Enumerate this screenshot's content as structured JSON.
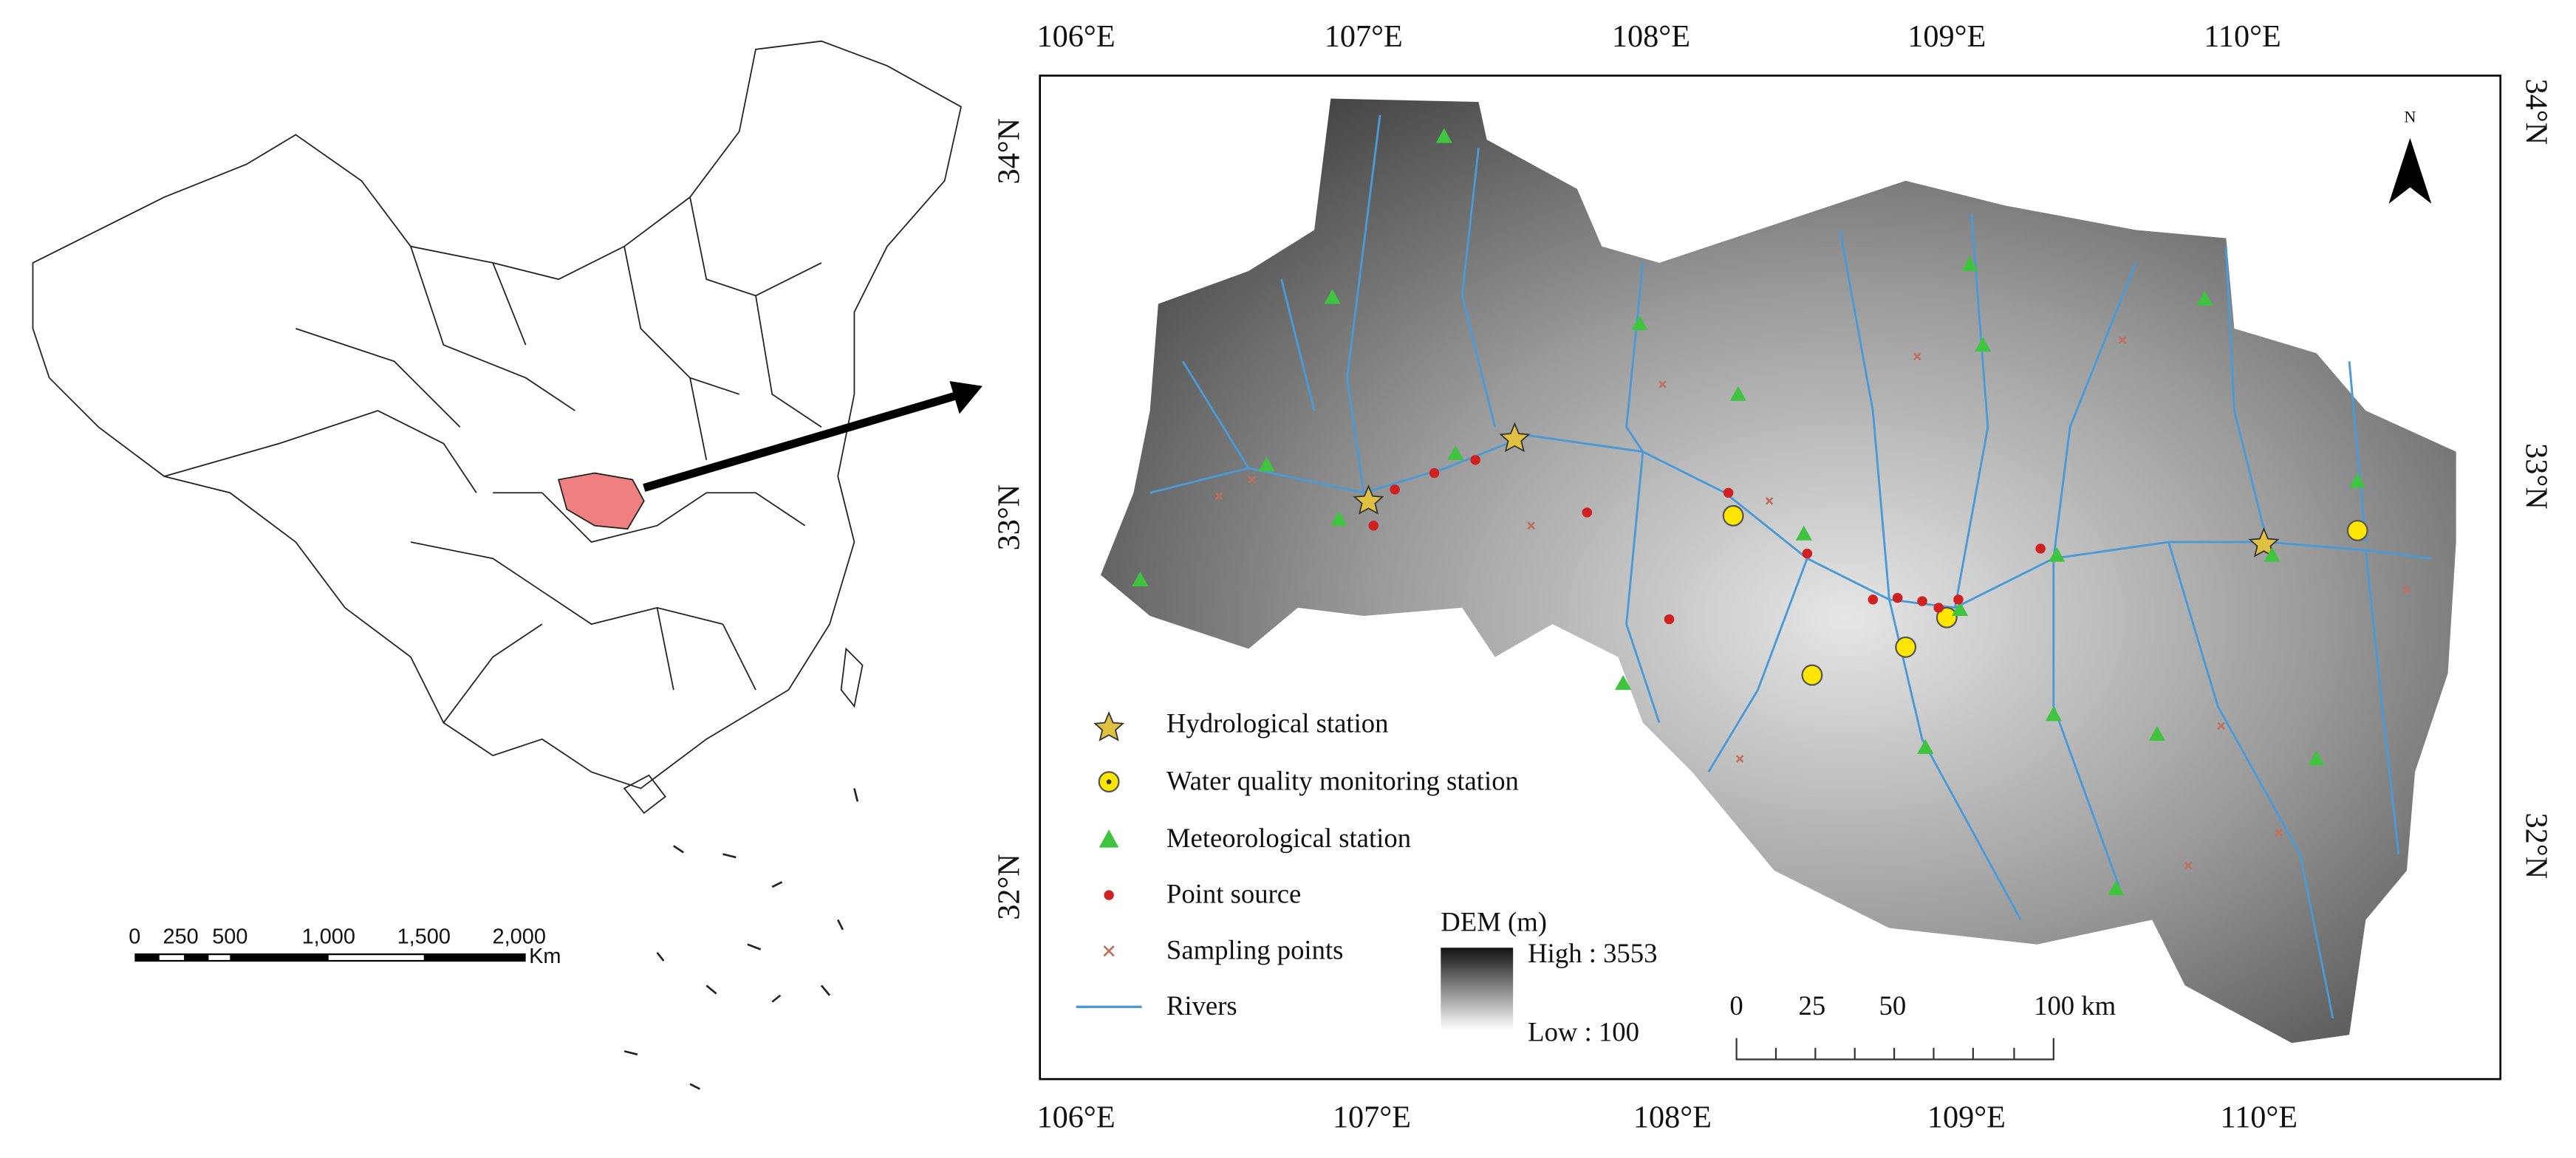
{
  "china_map": {
    "scale_bar": {
      "labels": [
        "0",
        "250",
        "500",
        "1,000",
        "1,500",
        "2,000"
      ],
      "unit": "Km"
    }
  },
  "study_map": {
    "lon_labels": [
      "106°E",
      "107°E",
      "108°E",
      "109°E",
      "110°E"
    ],
    "lat_labels": [
      "32°N",
      "33°N",
      "34°N"
    ],
    "north": "N",
    "legend": [
      "Hydrological station",
      "Water quality monitoring station",
      "Meteorological station",
      "Point source",
      "Sampling points",
      "Rivers"
    ],
    "dem": {
      "title": "DEM (m)",
      "high": "High : 3553",
      "low": "Low : 100"
    },
    "scale_bar": {
      "labels": [
        "0",
        "25",
        "50",
        "100 km"
      ]
    }
  }
}
